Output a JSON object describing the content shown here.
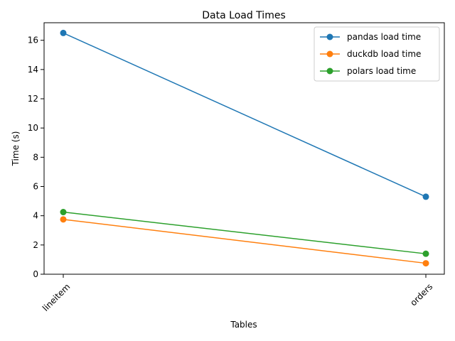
{
  "chart_data": {
    "type": "line",
    "title": "Data Load Times",
    "xlabel": "Tables",
    "ylabel": "Time (s)",
    "categories": [
      "lineitem",
      "orders"
    ],
    "ylim": [
      0,
      17.2
    ],
    "yticks": [
      0,
      2,
      4,
      6,
      8,
      10,
      12,
      14,
      16
    ],
    "legend_position": "top-right",
    "grid": false,
    "series": [
      {
        "name": "pandas load time",
        "color": "#1f77b4",
        "values": [
          16.5,
          5.3
        ]
      },
      {
        "name": "duckdb load time",
        "color": "#ff7f0e",
        "values": [
          3.75,
          0.75
        ]
      },
      {
        "name": "polars load time",
        "color": "#2ca02c",
        "values": [
          4.25,
          1.4
        ]
      }
    ]
  }
}
